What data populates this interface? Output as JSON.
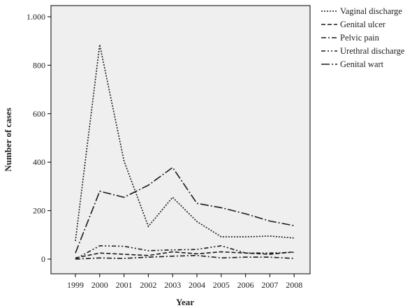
{
  "chart_data": {
    "type": "line",
    "xlabel": "Year",
    "ylabel": "Number of cases",
    "x": [
      "1999",
      "2000",
      "2001",
      "2002",
      "2003",
      "2004",
      "2005",
      "2006",
      "2007",
      "2008"
    ],
    "ylim": [
      0,
      1000
    ],
    "yticks": [
      0,
      200,
      400,
      600,
      800,
      1000
    ],
    "ytick_labels": [
      "0",
      "200",
      "400",
      "600",
      "800",
      "1.000"
    ],
    "grid": false,
    "legend_position": "outside-right",
    "plot_background": "#efefef",
    "series": [
      {
        "name": "Vaginal discharge",
        "style": "dotted",
        "values": [
          75,
          885,
          405,
          135,
          255,
          155,
          92,
          92,
          95,
          87
        ]
      },
      {
        "name": "Genital ulcer",
        "style": "dashed",
        "values": [
          5,
          25,
          20,
          15,
          30,
          22,
          30,
          25,
          20,
          30
        ]
      },
      {
        "name": "Pelvic pain",
        "style": "dash-dot",
        "values": [
          0,
          5,
          3,
          8,
          12,
          15,
          5,
          8,
          8,
          3
        ]
      },
      {
        "name": "Urethral discharge",
        "style": "dash-dot-dot",
        "values": [
          0,
          55,
          53,
          35,
          38,
          40,
          55,
          25,
          25,
          28
        ]
      },
      {
        "name": "Genital wart",
        "style": "long-dash-dot",
        "values": [
          25,
          280,
          255,
          305,
          378,
          230,
          212,
          187,
          157,
          138
        ]
      }
    ]
  }
}
